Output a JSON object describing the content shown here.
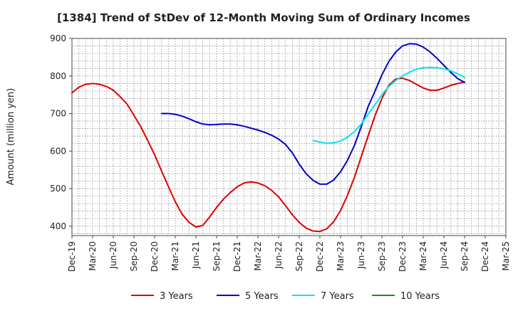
{
  "chart_data": {
    "type": "line",
    "title": "[1384]  Trend of StDev of 12-Month Moving Sum of Ordinary Incomes",
    "xlabel": "",
    "ylabel": "Amount (million yen)",
    "ylim": [
      375,
      900
    ],
    "yticks": [
      400,
      500,
      600,
      700,
      800,
      900
    ],
    "categories": [
      "Dec-19",
      "Mar-20",
      "Jun-20",
      "Sep-20",
      "Dec-20",
      "Mar-21",
      "Jun-21",
      "Sep-21",
      "Dec-21",
      "Mar-22",
      "Jun-22",
      "Sep-22",
      "Dec-22",
      "Mar-23",
      "Jun-23",
      "Sep-23",
      "Dec-23",
      "Mar-24",
      "Jun-24",
      "Sep-24",
      "Dec-24",
      "Mar-25"
    ],
    "grid": true,
    "legend_position": "bottom",
    "series": [
      {
        "name": "3 Years",
        "color": "#dd0000",
        "points": [
          [
            0,
            755
          ],
          [
            0.33,
            770
          ],
          [
            0.67,
            778
          ],
          [
            1,
            780
          ],
          [
            1.33,
            778
          ],
          [
            1.67,
            772
          ],
          [
            2,
            762
          ],
          [
            2.33,
            745
          ],
          [
            2.67,
            725
          ],
          [
            3,
            695
          ],
          [
            3.33,
            665
          ],
          [
            3.67,
            628
          ],
          [
            4,
            590
          ],
          [
            4.33,
            548
          ],
          [
            4.67,
            505
          ],
          [
            5,
            465
          ],
          [
            5.33,
            432
          ],
          [
            5.67,
            410
          ],
          [
            6,
            398
          ],
          [
            6.33,
            402
          ],
          [
            6.67,
            425
          ],
          [
            7,
            450
          ],
          [
            7.33,
            472
          ],
          [
            7.67,
            490
          ],
          [
            8,
            505
          ],
          [
            8.33,
            515
          ],
          [
            8.67,
            518
          ],
          [
            9,
            515
          ],
          [
            9.33,
            508
          ],
          [
            9.67,
            495
          ],
          [
            10,
            478
          ],
          [
            10.33,
            455
          ],
          [
            10.67,
            430
          ],
          [
            11,
            410
          ],
          [
            11.33,
            395
          ],
          [
            11.67,
            387
          ],
          [
            12,
            386
          ],
          [
            12.33,
            393
          ],
          [
            12.67,
            412
          ],
          [
            13,
            442
          ],
          [
            13.33,
            482
          ],
          [
            13.67,
            530
          ],
          [
            14,
            585
          ],
          [
            14.33,
            640
          ],
          [
            14.67,
            695
          ],
          [
            15,
            740
          ],
          [
            15.33,
            775
          ],
          [
            15.67,
            792
          ],
          [
            16,
            794
          ],
          [
            16.33,
            788
          ],
          [
            16.67,
            778
          ],
          [
            17,
            768
          ],
          [
            17.33,
            762
          ],
          [
            17.67,
            762
          ],
          [
            18,
            768
          ],
          [
            18.33,
            775
          ],
          [
            18.67,
            780
          ],
          [
            19,
            784
          ]
        ]
      },
      {
        "name": "5 Years",
        "color": "#0000cc",
        "points": [
          [
            4.33,
            700
          ],
          [
            4.67,
            700
          ],
          [
            5,
            698
          ],
          [
            5.33,
            693
          ],
          [
            5.67,
            686
          ],
          [
            6,
            678
          ],
          [
            6.33,
            672
          ],
          [
            6.67,
            670
          ],
          [
            7,
            671
          ],
          [
            7.33,
            672
          ],
          [
            7.67,
            672
          ],
          [
            8,
            670
          ],
          [
            8.33,
            666
          ],
          [
            8.67,
            661
          ],
          [
            9,
            656
          ],
          [
            9.33,
            650
          ],
          [
            9.67,
            642
          ],
          [
            10,
            632
          ],
          [
            10.33,
            618
          ],
          [
            10.67,
            595
          ],
          [
            11,
            565
          ],
          [
            11.33,
            540
          ],
          [
            11.67,
            522
          ],
          [
            12,
            512
          ],
          [
            12.33,
            512
          ],
          [
            12.67,
            523
          ],
          [
            13,
            545
          ],
          [
            13.33,
            575
          ],
          [
            13.67,
            615
          ],
          [
            14,
            665
          ],
          [
            14.33,
            718
          ],
          [
            14.67,
            760
          ],
          [
            15,
            803
          ],
          [
            15.33,
            838
          ],
          [
            15.67,
            864
          ],
          [
            16,
            880
          ],
          [
            16.33,
            886
          ],
          [
            16.67,
            885
          ],
          [
            17,
            877
          ],
          [
            17.33,
            864
          ],
          [
            17.67,
            847
          ],
          [
            18,
            828
          ],
          [
            18.33,
            810
          ],
          [
            18.67,
            793
          ],
          [
            19,
            783
          ]
        ]
      },
      {
        "name": "7 Years",
        "color": "#00e5ee",
        "points": [
          [
            11.67,
            628
          ],
          [
            12,
            624
          ],
          [
            12.33,
            621
          ],
          [
            12.67,
            622
          ],
          [
            13,
            627
          ],
          [
            13.33,
            637
          ],
          [
            13.67,
            652
          ],
          [
            14,
            672
          ],
          [
            14.33,
            698
          ],
          [
            14.67,
            724
          ],
          [
            15,
            750
          ],
          [
            15.33,
            772
          ],
          [
            15.67,
            788
          ],
          [
            16,
            800
          ],
          [
            16.33,
            810
          ],
          [
            16.67,
            818
          ],
          [
            17,
            822
          ],
          [
            17.33,
            823
          ],
          [
            17.67,
            822
          ],
          [
            18,
            819
          ],
          [
            18.33,
            814
          ],
          [
            18.67,
            806
          ],
          [
            19,
            796
          ]
        ]
      },
      {
        "name": "10 Years",
        "color": "#228B22",
        "points": []
      }
    ]
  }
}
